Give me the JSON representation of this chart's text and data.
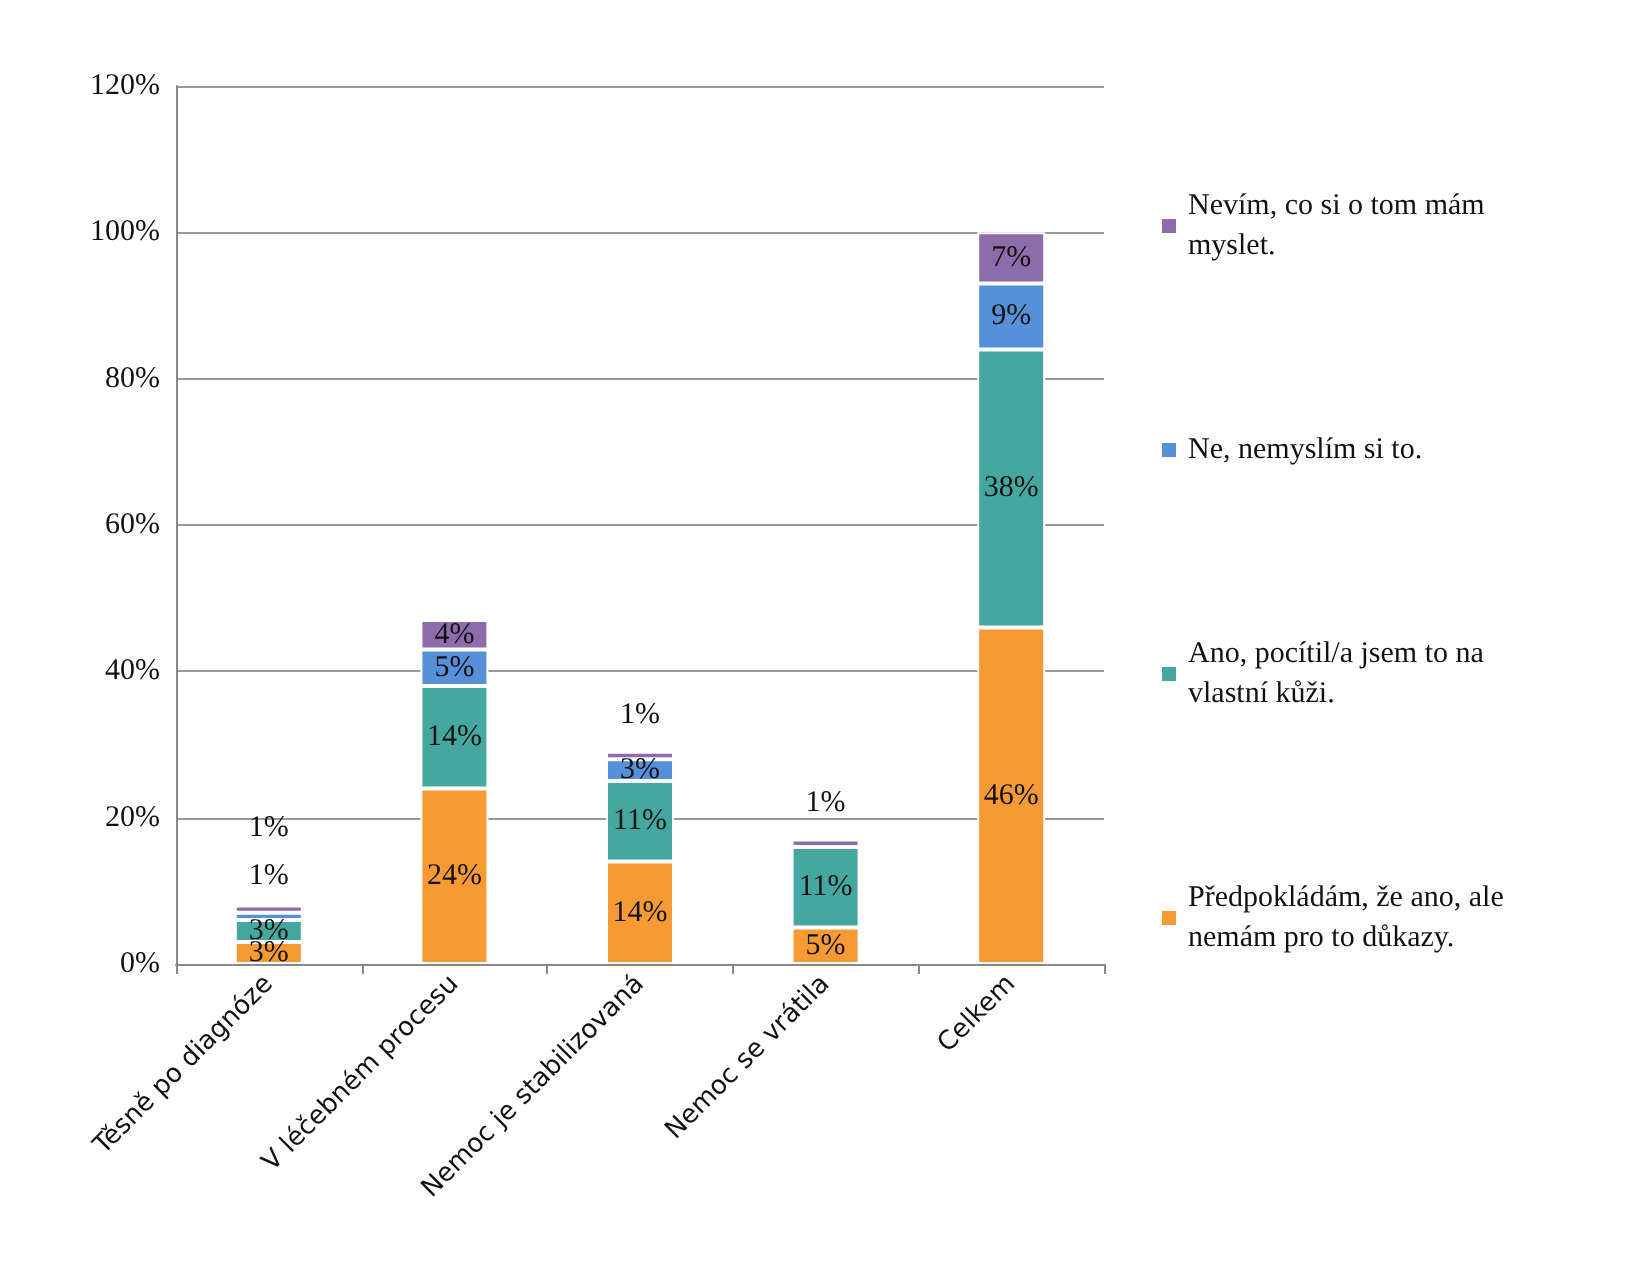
{
  "chart_data": {
    "type": "bar",
    "stacked": true,
    "categories": [
      "Těsně po diagnóze",
      "V léčebném procesu",
      "Nemoc je stabilizovaná",
      "Nemoc se vrátila",
      "Celkem"
    ],
    "series": [
      {
        "name": "Předpokládám, že ano, ale nemám pro to důkazy.",
        "color": "#f79a33",
        "values": [
          3,
          24,
          14,
          5,
          46
        ],
        "value_labels": [
          "3%",
          "24%",
          "14%",
          "5%",
          "46%"
        ]
      },
      {
        "name": "Ano, pocítil/a jsem to na vlastní kůži.",
        "color": "#44a8a0",
        "values": [
          3,
          14,
          11,
          11,
          38
        ],
        "value_labels": [
          "3%",
          "14%",
          "11%",
          "11%",
          "38%"
        ]
      },
      {
        "name": "Ne, nemyslím si to.",
        "color": "#5590d8",
        "values": [
          1,
          5,
          3,
          null,
          9
        ],
        "value_labels": [
          "1%",
          "5%",
          "3%",
          null,
          "9%"
        ]
      },
      {
        "name": "Nevím, co si o tom mám myslet.",
        "color": "#8e6bab",
        "values": [
          1,
          4,
          1,
          1,
          7
        ],
        "value_labels": [
          "1%",
          "4%",
          "1%",
          "1%",
          "7%"
        ]
      }
    ],
    "ylim": [
      0,
      120
    ],
    "yticks": [
      {
        "value": 0,
        "label": "0%"
      },
      {
        "value": 20,
        "label": "20%"
      },
      {
        "value": 40,
        "label": "40%"
      },
      {
        "value": 60,
        "label": "60%"
      },
      {
        "value": 80,
        "label": "80%"
      },
      {
        "value": 100,
        "label": "100%"
      },
      {
        "value": 120,
        "label": "120%"
      }
    ],
    "grid": "y",
    "legend": "right"
  }
}
